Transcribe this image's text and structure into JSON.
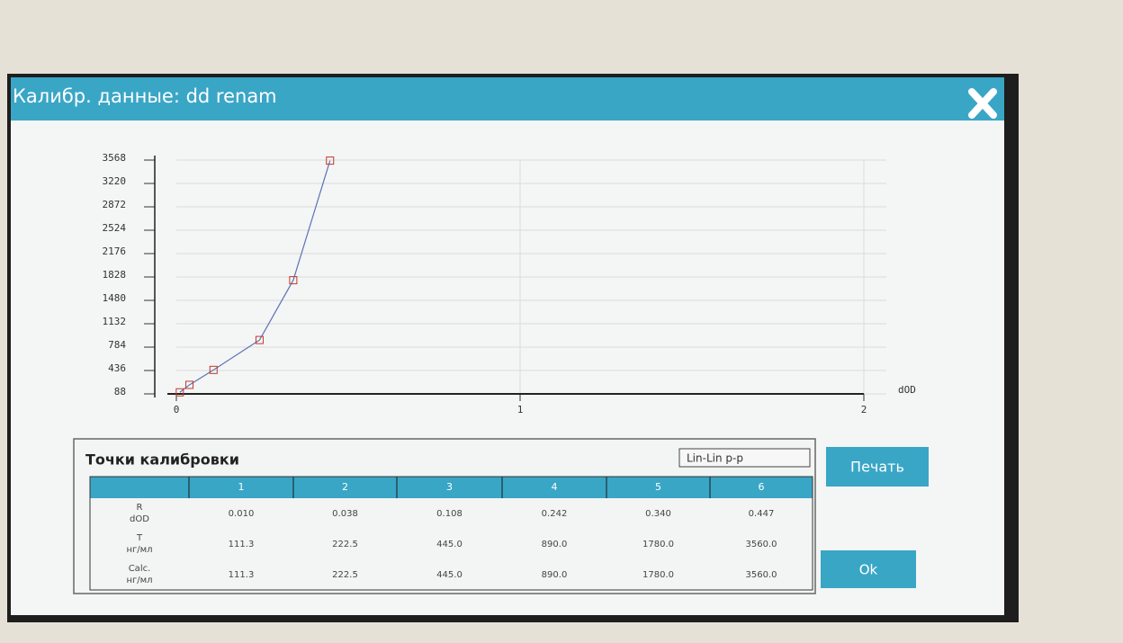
{
  "window": {
    "title": "Калибр. данные: dd renam"
  },
  "chart_data": {
    "type": "line",
    "x_label": "dOD",
    "x": [
      0.01,
      0.038,
      0.108,
      0.242,
      0.34,
      0.447
    ],
    "series": [
      {
        "color": "#5b73b5",
        "marker_color": "#c0392b",
        "values": [
          111.3,
          222.5,
          445.0,
          890.0,
          1780.0,
          3560.0
        ]
      }
    ],
    "xlim": [
      0,
      2
    ],
    "xticks": [
      0,
      1,
      2
    ],
    "ylim": [
      88,
      3568
    ],
    "yticks": [
      88,
      436,
      784,
      1132,
      1480,
      1828,
      2176,
      2524,
      2872,
      3220,
      3568
    ],
    "grid": true
  },
  "panel": {
    "title": "Точки калибровки",
    "mode": "Lin-Lin p-p"
  },
  "table": {
    "header": [
      "1",
      "2",
      "3",
      "4",
      "5",
      "6"
    ],
    "rows": [
      {
        "label": [
          "R",
          "dOD"
        ],
        "cells": [
          "0.010",
          "0.038",
          "0.108",
          "0.242",
          "0.340",
          "0.447"
        ]
      },
      {
        "label": [
          "T",
          "нг/мл"
        ],
        "cells": [
          "111.3",
          "222.5",
          "445.0",
          "890.0",
          "1780.0",
          "3560.0"
        ]
      },
      {
        "label": [
          "Calc.",
          "нг/мл"
        ],
        "cells": [
          "111.3",
          "222.5",
          "445.0",
          "890.0",
          "1780.0",
          "3560.0"
        ]
      }
    ]
  },
  "buttons": {
    "print": "Печать",
    "ok": "Ok"
  }
}
